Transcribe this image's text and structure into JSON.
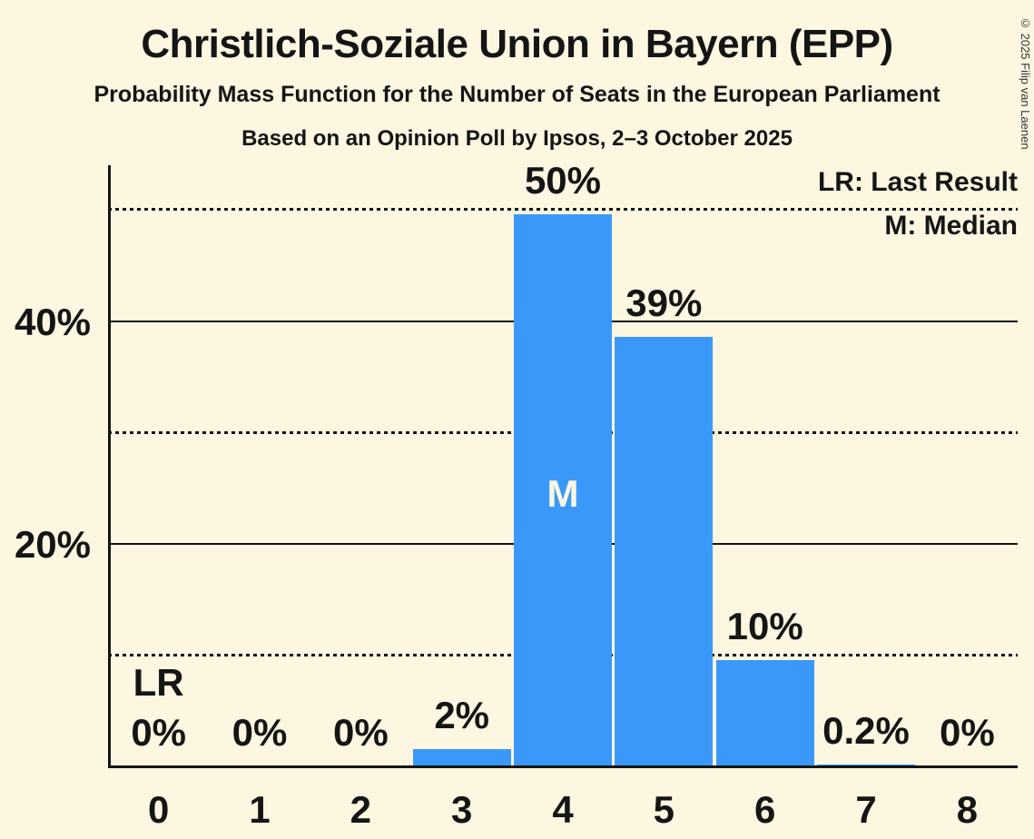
{
  "header": {
    "title": "Christlich-Soziale Union in Bayern (EPP)",
    "subtitle": "Probability Mass Function for the Number of Seats in the European Parliament",
    "poll_info": "Based on an Opinion Poll by Ipsos, 2–3 October 2025",
    "copyright": "© 2025 Filip van Laenen"
  },
  "legend": {
    "last_result_label": "LR: Last Result",
    "median_label": "M: Median"
  },
  "colors": {
    "background": "#FDF6E0",
    "bar": "#3A99F8",
    "text": "#151515",
    "median_marker_text": "#FDF6E0"
  },
  "chart_data": {
    "type": "bar",
    "title": "Christlich-Soziale Union in Bayern (EPP)",
    "xlabel": "",
    "ylabel": "",
    "categories": [
      "0",
      "1",
      "2",
      "3",
      "4",
      "5",
      "6",
      "7",
      "8"
    ],
    "values": [
      0,
      0,
      0,
      2,
      50,
      39,
      10,
      0.2,
      0
    ],
    "value_labels": [
      "0%",
      "0%",
      "0%",
      "2%",
      "50%",
      "39%",
      "10%",
      "0.2%",
      "0%"
    ],
    "y_axis": {
      "ticks": [
        {
          "value": 20,
          "label": "20%"
        },
        {
          "value": 40,
          "label": "40%"
        }
      ],
      "max": 54,
      "solid_gridlines": [
        20,
        40
      ],
      "dotted_gridlines": [
        10,
        30,
        50
      ]
    },
    "median": {
      "category": "4",
      "marker": "M"
    },
    "last_result": {
      "category": "0",
      "marker": "LR"
    },
    "grid": "horizontal-only",
    "legend_position": "top-right"
  }
}
